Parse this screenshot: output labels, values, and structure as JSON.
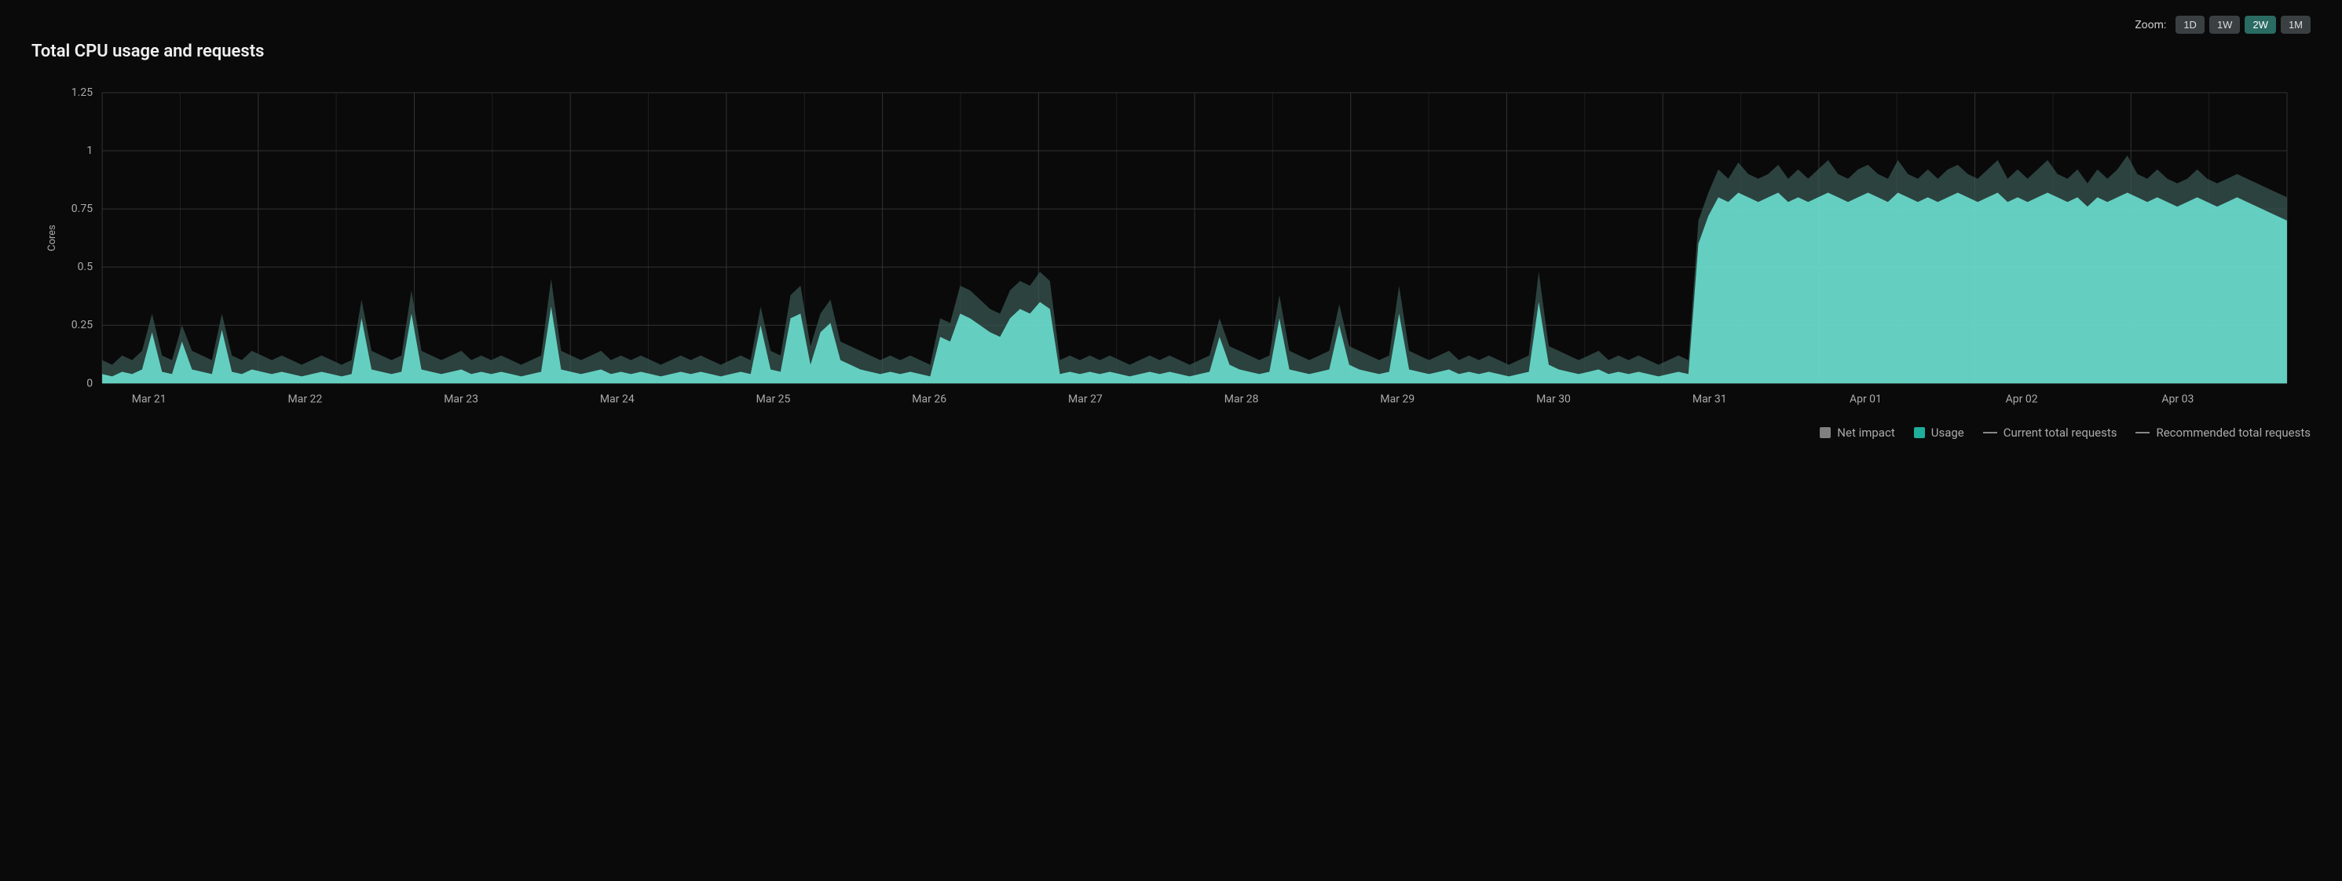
{
  "header": {
    "zoom_label": "Zoom:",
    "zoom_options": [
      "1D",
      "1W",
      "2W",
      "1M"
    ],
    "zoom_active": "2W"
  },
  "title": "Total CPU usage and requests",
  "chart": {
    "type": "area",
    "ylabel": "Cores",
    "ylim": [
      0,
      1.25
    ],
    "yticks": [
      0,
      0.25,
      0.5,
      0.75,
      1,
      1.25
    ],
    "ytick_labels": [
      "0",
      "0.25",
      "0.5",
      "0.75",
      "1",
      "1.25"
    ],
    "x_labels": [
      "Mar 21",
      "Mar 22",
      "Mar 23",
      "Mar 24",
      "Mar 25",
      "Mar 26",
      "Mar 27",
      "Mar 28",
      "Mar 29",
      "Mar 30",
      "Mar 31",
      "Apr 01",
      "Apr 02",
      "Apr 03"
    ],
    "background_color": "#0a0a0a",
    "grid_color": "#333333",
    "axis_text_color": "#aaaaaa",
    "series": {
      "usage": {
        "color": "#6ee7d7",
        "fill_opacity": 0.85,
        "data": [
          0.04,
          0.03,
          0.05,
          0.04,
          0.06,
          0.22,
          0.05,
          0.04,
          0.18,
          0.06,
          0.05,
          0.04,
          0.23,
          0.05,
          0.04,
          0.06,
          0.05,
          0.04,
          0.05,
          0.04,
          0.03,
          0.04,
          0.05,
          0.04,
          0.03,
          0.04,
          0.28,
          0.06,
          0.05,
          0.04,
          0.05,
          0.3,
          0.06,
          0.05,
          0.04,
          0.05,
          0.06,
          0.04,
          0.05,
          0.04,
          0.05,
          0.04,
          0.03,
          0.04,
          0.05,
          0.33,
          0.06,
          0.05,
          0.04,
          0.05,
          0.06,
          0.04,
          0.05,
          0.04,
          0.05,
          0.04,
          0.03,
          0.04,
          0.05,
          0.04,
          0.05,
          0.04,
          0.03,
          0.04,
          0.05,
          0.04,
          0.25,
          0.06,
          0.05,
          0.28,
          0.3,
          0.08,
          0.22,
          0.26,
          0.1,
          0.08,
          0.06,
          0.05,
          0.04,
          0.05,
          0.04,
          0.05,
          0.04,
          0.03,
          0.2,
          0.18,
          0.3,
          0.28,
          0.25,
          0.22,
          0.2,
          0.28,
          0.32,
          0.3,
          0.35,
          0.32,
          0.04,
          0.05,
          0.04,
          0.05,
          0.04,
          0.05,
          0.04,
          0.03,
          0.04,
          0.05,
          0.04,
          0.05,
          0.04,
          0.03,
          0.04,
          0.05,
          0.2,
          0.08,
          0.06,
          0.05,
          0.04,
          0.05,
          0.28,
          0.06,
          0.05,
          0.04,
          0.05,
          0.06,
          0.25,
          0.08,
          0.06,
          0.05,
          0.04,
          0.05,
          0.3,
          0.06,
          0.05,
          0.04,
          0.05,
          0.06,
          0.04,
          0.05,
          0.04,
          0.05,
          0.04,
          0.03,
          0.04,
          0.05,
          0.35,
          0.08,
          0.06,
          0.05,
          0.04,
          0.05,
          0.06,
          0.04,
          0.05,
          0.04,
          0.05,
          0.04,
          0.03,
          0.04,
          0.05,
          0.04,
          0.6,
          0.72,
          0.8,
          0.78,
          0.82,
          0.8,
          0.78,
          0.8,
          0.82,
          0.78,
          0.8,
          0.78,
          0.8,
          0.82,
          0.8,
          0.78,
          0.8,
          0.82,
          0.8,
          0.78,
          0.82,
          0.8,
          0.78,
          0.8,
          0.78,
          0.8,
          0.82,
          0.8,
          0.78,
          0.8,
          0.82,
          0.78,
          0.8,
          0.78,
          0.8,
          0.82,
          0.8,
          0.78,
          0.8,
          0.76,
          0.8,
          0.78,
          0.8,
          0.82,
          0.8,
          0.78,
          0.8,
          0.78,
          0.76,
          0.78,
          0.8,
          0.78,
          0.76,
          0.78,
          0.8,
          0.78,
          0.76,
          0.74,
          0.72,
          0.7
        ]
      },
      "net_impact": {
        "color": "#3a5a56",
        "fill_opacity": 0.7,
        "data": [
          0.1,
          0.08,
          0.12,
          0.1,
          0.14,
          0.3,
          0.12,
          0.1,
          0.25,
          0.14,
          0.12,
          0.1,
          0.3,
          0.12,
          0.1,
          0.14,
          0.12,
          0.1,
          0.12,
          0.1,
          0.08,
          0.1,
          0.12,
          0.1,
          0.08,
          0.1,
          0.36,
          0.14,
          0.12,
          0.1,
          0.12,
          0.4,
          0.14,
          0.12,
          0.1,
          0.12,
          0.14,
          0.1,
          0.12,
          0.1,
          0.12,
          0.1,
          0.08,
          0.1,
          0.12,
          0.45,
          0.14,
          0.12,
          0.1,
          0.12,
          0.14,
          0.1,
          0.12,
          0.1,
          0.12,
          0.1,
          0.08,
          0.1,
          0.12,
          0.1,
          0.12,
          0.1,
          0.08,
          0.1,
          0.12,
          0.1,
          0.33,
          0.14,
          0.12,
          0.38,
          0.42,
          0.16,
          0.3,
          0.36,
          0.18,
          0.16,
          0.14,
          0.12,
          0.1,
          0.12,
          0.1,
          0.12,
          0.1,
          0.08,
          0.28,
          0.26,
          0.42,
          0.4,
          0.36,
          0.32,
          0.3,
          0.4,
          0.44,
          0.42,
          0.48,
          0.44,
          0.1,
          0.12,
          0.1,
          0.12,
          0.1,
          0.12,
          0.1,
          0.08,
          0.1,
          0.12,
          0.1,
          0.12,
          0.1,
          0.08,
          0.1,
          0.12,
          0.28,
          0.16,
          0.14,
          0.12,
          0.1,
          0.12,
          0.38,
          0.14,
          0.12,
          0.1,
          0.12,
          0.14,
          0.34,
          0.16,
          0.14,
          0.12,
          0.1,
          0.12,
          0.42,
          0.14,
          0.12,
          0.1,
          0.12,
          0.14,
          0.1,
          0.12,
          0.1,
          0.12,
          0.1,
          0.08,
          0.1,
          0.12,
          0.48,
          0.16,
          0.14,
          0.12,
          0.1,
          0.12,
          0.14,
          0.1,
          0.12,
          0.1,
          0.12,
          0.1,
          0.08,
          0.1,
          0.12,
          0.1,
          0.7,
          0.82,
          0.92,
          0.88,
          0.95,
          0.9,
          0.88,
          0.9,
          0.94,
          0.88,
          0.92,
          0.88,
          0.92,
          0.96,
          0.9,
          0.88,
          0.92,
          0.94,
          0.9,
          0.88,
          0.96,
          0.9,
          0.88,
          0.92,
          0.88,
          0.92,
          0.94,
          0.9,
          0.88,
          0.92,
          0.96,
          0.88,
          0.92,
          0.88,
          0.92,
          0.96,
          0.9,
          0.88,
          0.92,
          0.86,
          0.92,
          0.88,
          0.92,
          0.98,
          0.9,
          0.88,
          0.92,
          0.88,
          0.86,
          0.88,
          0.92,
          0.88,
          0.86,
          0.88,
          0.9,
          0.88,
          0.86,
          0.84,
          0.82,
          0.8
        ]
      }
    },
    "legend": [
      {
        "type": "swatch",
        "label": "Net impact",
        "color": "#808080"
      },
      {
        "type": "swatch",
        "label": "Usage",
        "color": "#1fae9b"
      },
      {
        "type": "line",
        "label": "Current total requests",
        "color": "#888888"
      },
      {
        "type": "line",
        "label": "Recommended total requests",
        "color": "#888888"
      }
    ]
  }
}
